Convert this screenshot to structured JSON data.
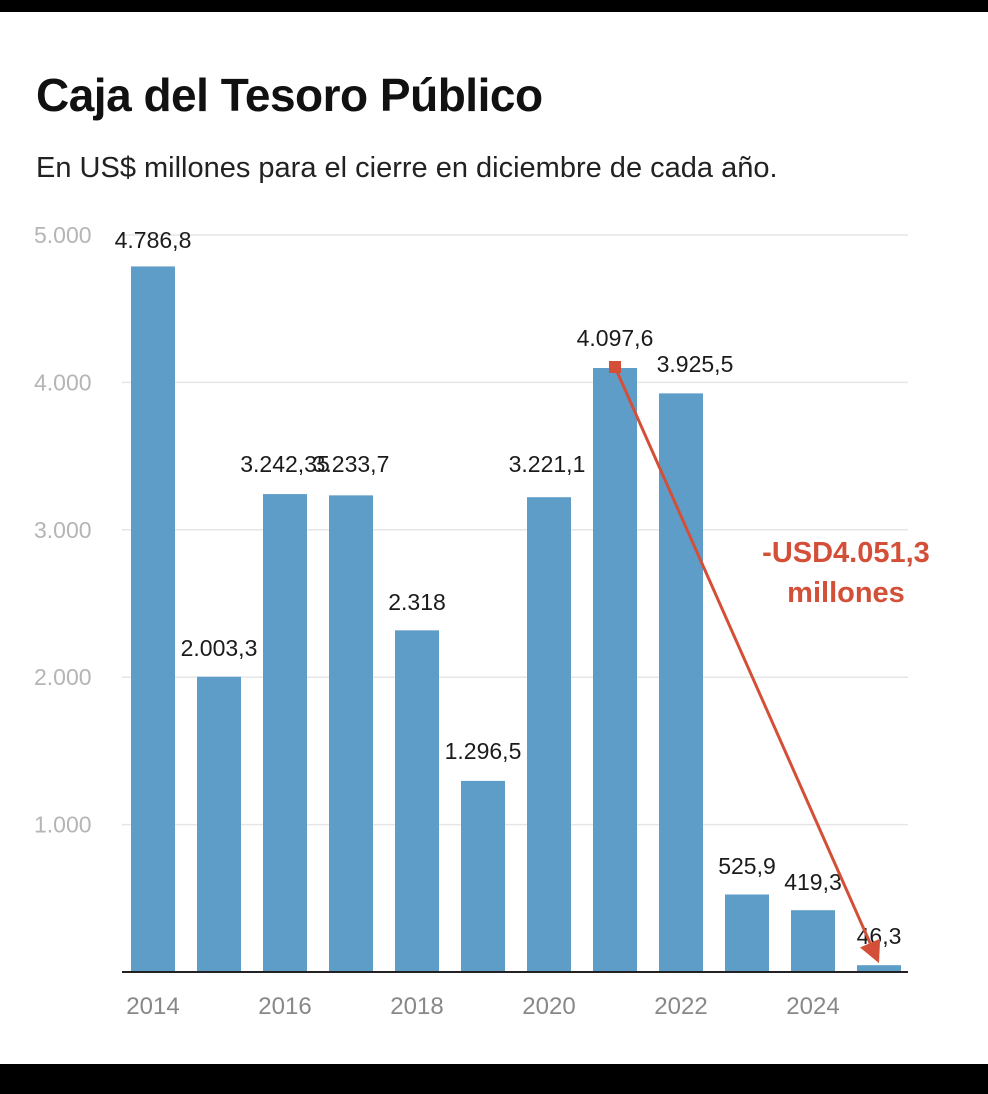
{
  "chart_data": {
    "type": "bar",
    "title": "Caja del Tesoro Público",
    "subtitle": "En US$ millones para el cierre en diciembre de cada año.",
    "categories": [
      "2014",
      "2015",
      "2016",
      "2017",
      "2018",
      "2019",
      "2020",
      "2021",
      "2022",
      "2023",
      "2024",
      "2025"
    ],
    "values": [
      4786.8,
      2003.3,
      3242.35,
      3233.7,
      2318,
      1296.5,
      3221.1,
      4097.6,
      3925.5,
      525.9,
      419.3,
      46.3
    ],
    "data_labels": [
      "4.786,8",
      "2.003,3",
      "3.242,35",
      "3.233,7",
      "2.318",
      "1.296,5",
      "3.221,1",
      "4.097,6",
      "3.925,5",
      "525,9",
      "419,3",
      "46,3"
    ],
    "x_tick_labels": [
      "2014",
      "",
      "2016",
      "",
      "2018",
      "",
      "2020",
      "",
      "2022",
      "",
      "2024",
      ""
    ],
    "ylim": [
      0,
      5000
    ],
    "y_ticks": [
      1000,
      2000,
      3000,
      4000,
      5000
    ],
    "y_tick_labels": [
      "1.000",
      "2.000",
      "3.000",
      "4.000",
      "5.000"
    ],
    "grid": true,
    "bar_color": "#5f9dc9",
    "annotation": {
      "line1": "-USD4.051,3",
      "line2": "millones",
      "from_category": "2021",
      "to_category": "2025",
      "color": "#d44f37"
    }
  }
}
